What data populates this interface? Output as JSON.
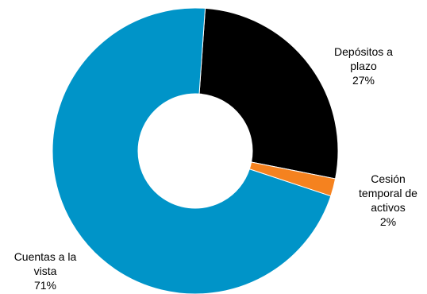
{
  "chart_data": {
    "type": "pie",
    "variant": "donut",
    "start_angle_deg": 4,
    "direction": "clockwise",
    "slices": [
      {
        "label_lines": [
          "Depósitos a",
          "plazo",
          "27%"
        ],
        "value": 27,
        "color": "#000000"
      },
      {
        "label_lines": [
          "Cesión",
          "temporal de",
          "activos",
          "2%"
        ],
        "value": 2,
        "color": "#f5821f"
      },
      {
        "label_lines": [
          "Cuentas a la",
          "vista",
          "71%"
        ],
        "value": 71,
        "color": "#0094c8"
      }
    ],
    "legend": "none"
  }
}
